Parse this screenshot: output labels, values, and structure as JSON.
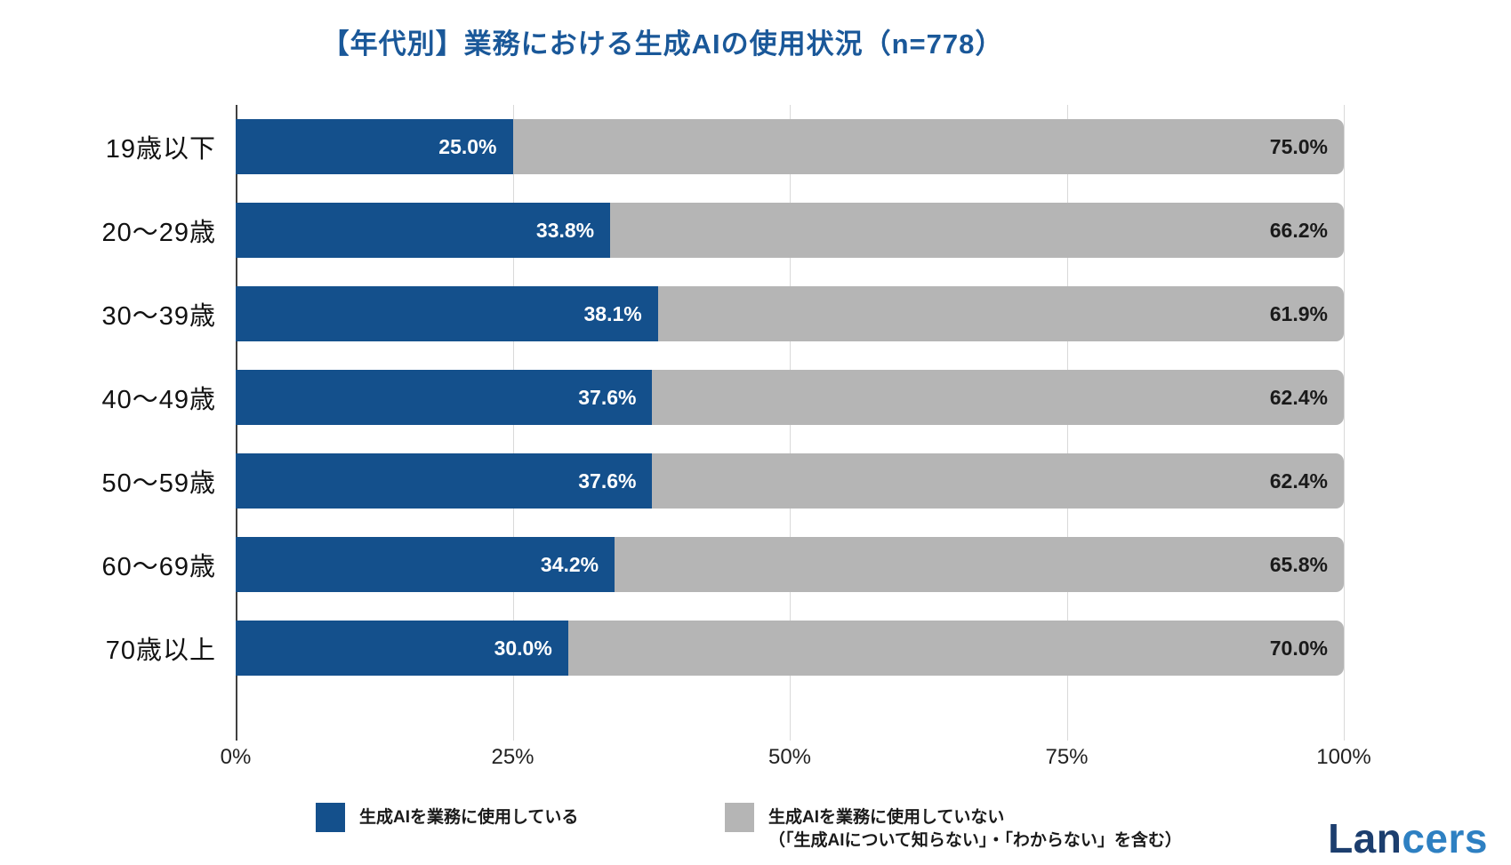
{
  "title": "【年代別】業務における生成AIの使用状況（n=778）",
  "chart_data": {
    "type": "bar",
    "orientation": "horizontal",
    "stacked": true,
    "categories": [
      "19歳以下",
      "20〜29歳",
      "30〜39歳",
      "40〜49歳",
      "50〜59歳",
      "60〜69歳",
      "70歳以上"
    ],
    "series": [
      {
        "name": "生成AIを業務に使用している",
        "values": [
          25.0,
          33.8,
          38.1,
          37.6,
          37.6,
          34.2,
          30.0
        ],
        "color": "#14508C",
        "label_color": "#FFFFFF"
      },
      {
        "name": "生成AIを業務に使用していない（「生成AIについて知らない」・「わからない」を含む）",
        "values": [
          75.0,
          66.2,
          61.9,
          62.4,
          62.4,
          65.8,
          70.0
        ],
        "color": "#B5B5B5",
        "label_color": "#1A1A1A"
      }
    ],
    "xlim": [
      0,
      100
    ],
    "x_tick_values": [
      0,
      25,
      50,
      75,
      100
    ],
    "x_tick_labels": [
      "0%",
      "25%",
      "50%",
      "75%",
      "100%"
    ],
    "value_suffix": "%",
    "grid": true,
    "legend_position": "bottom"
  },
  "legend": {
    "items": [
      {
        "label": "生成AIを業務に使用している",
        "color": "#14508C"
      },
      {
        "label_line1": "生成AIを業務に使用していない",
        "label_line2": "（「生成AIについて知らない」・「わからない」を含む）",
        "color": "#B5B5B5"
      }
    ]
  },
  "logo": {
    "text_dark": "Lan",
    "text_light": "cers"
  },
  "colors": {
    "title": "#1A5899",
    "bar_blue": "#14508C",
    "bar_gray": "#B5B5B5",
    "gridline": "#D9D9D9",
    "axis": "#404040",
    "tick_text": "#222222",
    "logo_dark": "#1C3E6E",
    "logo_light": "#2E80C2"
  }
}
